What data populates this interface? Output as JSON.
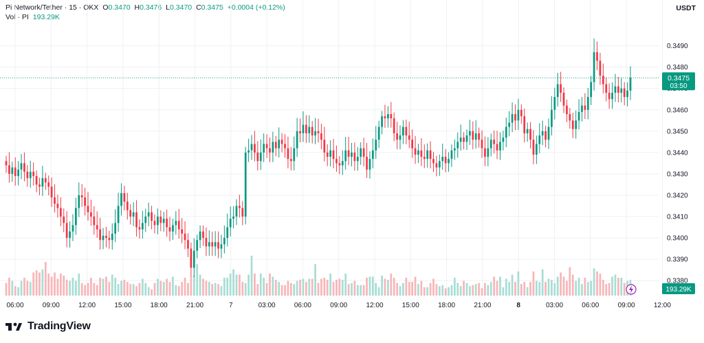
{
  "header": {
    "symbol": "Pi Network/Tether · 15 · OKX",
    "o_label": "O",
    "o_value": "0.3470",
    "h_label": "H",
    "h_value": "0.3476",
    "l_label": "L",
    "l_value": "0.3470",
    "c_label": "C",
    "c_value": "0.3475",
    "change": "+0.0004 (+0.12%)",
    "vol_label": "Vol · PI",
    "vol_value": "193.29K"
  },
  "currency": "USDT",
  "brand": "TradingView",
  "colors": {
    "up": "#089981",
    "down": "#F23645",
    "up_vol": "#A8DDD4",
    "down_vol": "#F8B5B8",
    "grid": "#EEF0F3",
    "text": "#131722"
  },
  "chart_data": {
    "type": "candlestick",
    "title": "Pi Network/Tether · 15 · OKX",
    "ylim": [
      0.3382,
      0.3496
    ],
    "y_ticks": [
      "0.3490",
      "0.3480",
      "0.3470",
      "0.3460",
      "0.3450",
      "0.3440",
      "0.3430",
      "0.3420",
      "0.3410",
      "0.3400",
      "0.3390",
      "0.3380"
    ],
    "x_ticks": [
      {
        "label": "06:00",
        "bold": false
      },
      {
        "label": "09:00",
        "bold": false
      },
      {
        "label": "12:00",
        "bold": false
      },
      {
        "label": "15:00",
        "bold": false
      },
      {
        "label": "18:00",
        "bold": false
      },
      {
        "label": "21:00",
        "bold": false
      },
      {
        "label": "7",
        "bold": false
      },
      {
        "label": "03:00",
        "bold": false
      },
      {
        "label": "06:00",
        "bold": false
      },
      {
        "label": "09:00",
        "bold": false
      },
      {
        "label": "12:00",
        "bold": false
      },
      {
        "label": "15:00",
        "bold": false
      },
      {
        "label": "18:00",
        "bold": false
      },
      {
        "label": "21:00",
        "bold": false
      },
      {
        "label": "8",
        "bold": true
      },
      {
        "label": "03:00",
        "bold": false
      },
      {
        "label": "06:00",
        "bold": false
      },
      {
        "label": "09:00",
        "bold": false
      },
      {
        "label": "12:00",
        "bold": false
      }
    ],
    "last_price": "0.3475",
    "countdown": "03:50",
    "last_volume": "193.29K",
    "close": [
      0.3434,
      0.343,
      0.3433,
      0.3429,
      0.3432,
      0.3435,
      0.3431,
      0.3428,
      0.3431,
      0.3429,
      0.3425,
      0.3424,
      0.3428,
      0.3426,
      0.3424,
      0.3419,
      0.3416,
      0.3414,
      0.341,
      0.3407,
      0.34,
      0.3403,
      0.3406,
      0.3414,
      0.342,
      0.3419,
      0.3415,
      0.3412,
      0.341,
      0.3406,
      0.3404,
      0.3399,
      0.3401,
      0.34,
      0.3399,
      0.3402,
      0.3407,
      0.3415,
      0.3421,
      0.3417,
      0.3413,
      0.341,
      0.3412,
      0.3405,
      0.3404,
      0.3407,
      0.341,
      0.3412,
      0.3408,
      0.3406,
      0.341,
      0.3407,
      0.3409,
      0.3405,
      0.3403,
      0.3406,
      0.3408,
      0.3404,
      0.3402,
      0.3399,
      0.3395,
      0.3386,
      0.3394,
      0.3399,
      0.3403,
      0.34,
      0.3396,
      0.3398,
      0.3396,
      0.3398,
      0.3395,
      0.3397,
      0.34,
      0.3405,
      0.3409,
      0.341,
      0.3415,
      0.3414,
      0.341,
      0.344,
      0.3441,
      0.3444,
      0.344,
      0.3436,
      0.344,
      0.3444,
      0.3442,
      0.344,
      0.3445,
      0.3442,
      0.3446,
      0.3444,
      0.3442,
      0.3437,
      0.3436,
      0.3442,
      0.345,
      0.3449,
      0.3453,
      0.3449,
      0.3452,
      0.3448,
      0.345,
      0.3449,
      0.3446,
      0.344,
      0.3438,
      0.3441,
      0.3437,
      0.3435,
      0.3434,
      0.3436,
      0.3441,
      0.3438,
      0.344,
      0.3436,
      0.3438,
      0.3442,
      0.3438,
      0.3432,
      0.3437,
      0.3441,
      0.3446,
      0.3452,
      0.3457,
      0.3456,
      0.3458,
      0.3456,
      0.3449,
      0.3446,
      0.3448,
      0.3452,
      0.3448,
      0.3446,
      0.3442,
      0.3439,
      0.3441,
      0.3438,
      0.3437,
      0.3441,
      0.3437,
      0.3435,
      0.3433,
      0.3436,
      0.3438,
      0.3435,
      0.3437,
      0.3441,
      0.3442,
      0.3445,
      0.3447,
      0.3445,
      0.3448,
      0.345,
      0.3446,
      0.3449,
      0.3446,
      0.3442,
      0.3438,
      0.3442,
      0.3446,
      0.3444,
      0.3441,
      0.3445,
      0.3447,
      0.3452,
      0.3454,
      0.3458,
      0.3455,
      0.346,
      0.3457,
      0.3449,
      0.3451,
      0.3446,
      0.3439,
      0.3444,
      0.3448,
      0.345,
      0.3446,
      0.3452,
      0.346,
      0.3466,
      0.3472,
      0.3468,
      0.3462,
      0.3458,
      0.3455,
      0.3451,
      0.3455,
      0.3459,
      0.3462,
      0.346,
      0.3466,
      0.3473,
      0.3487,
      0.3483,
      0.3476,
      0.3472,
      0.3468,
      0.3465,
      0.3468,
      0.3471,
      0.3468,
      0.347,
      0.3466,
      0.3469,
      0.3475
    ],
    "volume": [
      12,
      17,
      14,
      9,
      8,
      14,
      17,
      14,
      13,
      22,
      24,
      22,
      25,
      32,
      21,
      18,
      22,
      16,
      21,
      19,
      15,
      14,
      17,
      14,
      21,
      12,
      10,
      12,
      17,
      12,
      10,
      17,
      16,
      18,
      13,
      20,
      17,
      11,
      14,
      15,
      13,
      11,
      11,
      9,
      12,
      16,
      12,
      8,
      6,
      12,
      16,
      14,
      13,
      16,
      13,
      18,
      10,
      9,
      13,
      17,
      12,
      19,
      19,
      30,
      20,
      16,
      14,
      13,
      11,
      12,
      11,
      9,
      17,
      17,
      21,
      25,
      20,
      20,
      13,
      12,
      20,
      38,
      21,
      11,
      21,
      17,
      12,
      21,
      18,
      15,
      13,
      10,
      10,
      14,
      12,
      11,
      14,
      15,
      16,
      13,
      16,
      16,
      30,
      12,
      16,
      17,
      15,
      21,
      13,
      15,
      16,
      15,
      21,
      11,
      12,
      14,
      10,
      10,
      10,
      17,
      18,
      18,
      12,
      8,
      19,
      16,
      15,
      21,
      17,
      12,
      9,
      12,
      17,
      13,
      13,
      18,
      11,
      14,
      8,
      8,
      12,
      16,
      11,
      9,
      10,
      7,
      8,
      10,
      17,
      12,
      9,
      14,
      12,
      9,
      10,
      11,
      12,
      7,
      12,
      10,
      13,
      18,
      14,
      18,
      8,
      16,
      13,
      20,
      13,
      23,
      11,
      13,
      8,
      13,
      23,
      14,
      13,
      25,
      13,
      16,
      15,
      12,
      18,
      22,
      18,
      14,
      27,
      20,
      14,
      17,
      11,
      17,
      13,
      14,
      26,
      23,
      21,
      15,
      11,
      12,
      18,
      20,
      17,
      17,
      12,
      14,
      15
    ]
  }
}
